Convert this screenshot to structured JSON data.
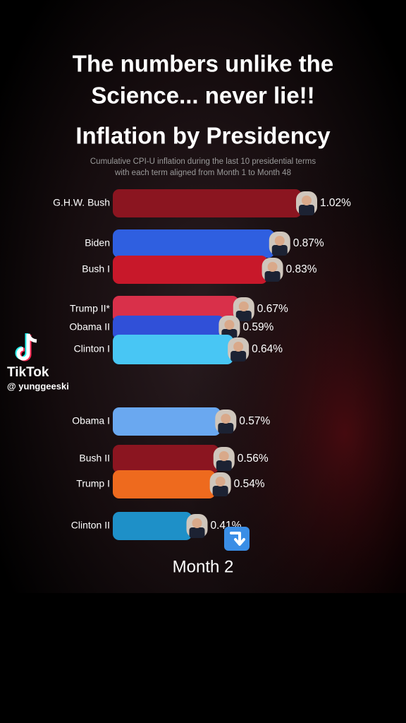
{
  "caption": [
    "The numbers unlike the",
    "Science... never lie!!"
  ],
  "chart_data": {
    "type": "bar",
    "orientation": "horizontal",
    "title": "Inflation by Presidency",
    "subtitle": [
      "Cumulative CPI-U inflation during the last 10 presidential terms",
      "with each term aligned from Month 1 to Month 48"
    ],
    "categories": [
      "G.H.W. Bush",
      "Biden",
      "Bush I",
      "Trump II*",
      "Obama II",
      "Clinton I",
      "Obama I",
      "Bush II",
      "Trump I",
      "Clinton II"
    ],
    "values": [
      1.02,
      0.87,
      0.83,
      0.67,
      0.59,
      0.64,
      0.57,
      0.56,
      0.54,
      0.41
    ],
    "value_labels": [
      "1.02%",
      "0.87%",
      "0.83%",
      "0.67%",
      "0.59%",
      "0.64%",
      "0.57%",
      "0.56%",
      "0.54%",
      "0.41%"
    ],
    "colors": [
      "#8b1520",
      "#2f5fe0",
      "#c8182a",
      "#d9304a",
      "#3050d8",
      "#48c6f4",
      "#6aa8f0",
      "#8b1520",
      "#ee6a1e",
      "#1e90c8"
    ],
    "frame_label": "Month 2"
  },
  "watermark": {
    "brand": "TikTok",
    "handle": "@ yunggeeski"
  }
}
